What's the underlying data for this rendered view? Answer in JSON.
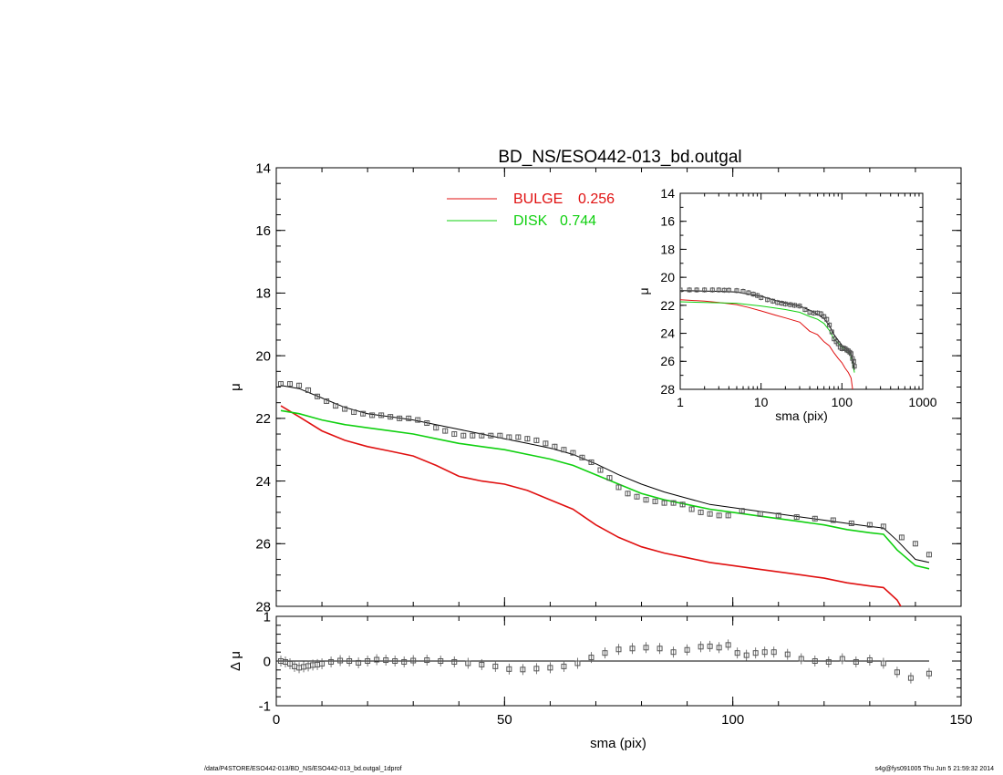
{
  "footer": {
    "path": "/data/P4STORE/ESO442-013/BD_NS/ESO442-013_bd.outgal_1dprof",
    "stamp": "s4g@fys091005  Thu Jun  5 21:59:32 2014"
  },
  "colors": {
    "bulge": "#e01010",
    "disk": "#10d010",
    "total": "#000000",
    "points": "#555555"
  },
  "chart_data": [
    {
      "type": "line",
      "title": "BD_NS/ESO442-013_bd.outgal",
      "xlabel": "",
      "ylabel": "μ",
      "xlim": [
        0,
        150
      ],
      "ylim": [
        28,
        14
      ],
      "y_reversed": true,
      "xticks": [
        0,
        50,
        100,
        150
      ],
      "yticks": [
        14,
        16,
        18,
        20,
        22,
        24,
        26,
        28
      ],
      "legend": [
        {
          "name": "BULGE",
          "value": "0.256",
          "color": "#e01010"
        },
        {
          "name": "DISK",
          "value": "0.744",
          "color": "#10d010"
        }
      ],
      "legend_position": "top-center",
      "series": [
        {
          "name": "BULGE",
          "color": "#e01010",
          "x": [
            1,
            5,
            10,
            15,
            20,
            25,
            30,
            35,
            40,
            45,
            50,
            55,
            60,
            65,
            70,
            75,
            80,
            85,
            90,
            95,
            100,
            105,
            110,
            115,
            120,
            125,
            130,
            133,
            136,
            138
          ],
          "y": [
            21.6,
            21.95,
            22.4,
            22.7,
            22.9,
            23.05,
            23.2,
            23.5,
            23.85,
            24.0,
            24.1,
            24.3,
            24.6,
            24.9,
            25.4,
            25.8,
            26.1,
            26.3,
            26.45,
            26.6,
            26.7,
            26.8,
            26.9,
            27.0,
            27.1,
            27.25,
            27.35,
            27.4,
            27.8,
            28.3
          ]
        },
        {
          "name": "DISK",
          "color": "#10d010",
          "x": [
            1,
            5,
            10,
            15,
            20,
            25,
            30,
            35,
            40,
            45,
            50,
            55,
            60,
            65,
            70,
            75,
            80,
            85,
            90,
            95,
            100,
            105,
            110,
            115,
            120,
            125,
            130,
            133,
            136,
            140,
            143
          ],
          "y": [
            21.75,
            21.85,
            22.05,
            22.2,
            22.3,
            22.4,
            22.5,
            22.65,
            22.8,
            22.9,
            23.0,
            23.15,
            23.3,
            23.5,
            23.8,
            24.1,
            24.4,
            24.6,
            24.75,
            24.9,
            25.0,
            25.1,
            25.2,
            25.3,
            25.4,
            25.55,
            25.65,
            25.7,
            26.2,
            26.7,
            26.8
          ]
        },
        {
          "name": "total",
          "color": "#000000",
          "x": [
            1,
            5,
            10,
            15,
            20,
            25,
            30,
            35,
            40,
            45,
            50,
            55,
            60,
            65,
            70,
            75,
            80,
            85,
            90,
            95,
            100,
            105,
            110,
            115,
            120,
            125,
            130,
            133,
            136,
            140,
            143
          ],
          "y": [
            20.95,
            21.05,
            21.35,
            21.65,
            21.85,
            21.95,
            22.05,
            22.2,
            22.35,
            22.5,
            22.65,
            22.8,
            22.95,
            23.15,
            23.45,
            23.8,
            24.1,
            24.35,
            24.55,
            24.75,
            24.85,
            24.95,
            25.05,
            25.15,
            25.25,
            25.35,
            25.45,
            25.5,
            25.9,
            26.5,
            26.6
          ]
        },
        {
          "name": "data",
          "type": "scatter",
          "color": "#555555",
          "x": [
            1,
            3,
            5,
            7,
            9,
            11,
            13,
            15,
            17,
            19,
            21,
            23,
            25,
            27,
            29,
            31,
            33,
            35,
            37,
            39,
            41,
            43,
            45,
            47,
            49,
            51,
            53,
            55,
            57,
            59,
            61,
            63,
            65,
            67,
            69,
            71,
            73,
            75,
            77,
            79,
            81,
            83,
            85,
            87,
            89,
            91,
            93,
            95,
            97,
            99,
            102,
            106,
            110,
            114,
            118,
            122,
            126,
            130,
            133,
            137,
            140,
            143
          ],
          "y": [
            20.9,
            20.9,
            20.95,
            21.1,
            21.3,
            21.45,
            21.6,
            21.7,
            21.8,
            21.85,
            21.9,
            21.9,
            21.95,
            22.0,
            22.0,
            22.05,
            22.15,
            22.3,
            22.4,
            22.5,
            22.55,
            22.55,
            22.55,
            22.55,
            22.55,
            22.6,
            22.6,
            22.65,
            22.7,
            22.8,
            22.9,
            23.0,
            23.1,
            23.25,
            23.4,
            23.65,
            23.9,
            24.2,
            24.4,
            24.5,
            24.6,
            24.65,
            24.7,
            24.7,
            24.75,
            24.9,
            25.0,
            25.05,
            25.1,
            25.1,
            24.95,
            25.05,
            25.1,
            25.15,
            25.2,
            25.25,
            25.35,
            25.4,
            25.45,
            25.8,
            26.0,
            26.35
          ]
        }
      ]
    },
    {
      "type": "line",
      "title": "",
      "xlabel": "",
      "ylabel": "Δ μ",
      "xlim": [
        0,
        150
      ],
      "ylim": [
        -1,
        1
      ],
      "xticks": [
        0,
        50,
        100,
        150
      ],
      "yticks": [
        -1,
        0,
        1
      ],
      "series": [
        {
          "name": "zero",
          "color": "#000000",
          "x": [
            0,
            143
          ],
          "y": [
            0,
            0
          ]
        },
        {
          "name": "residual",
          "type": "scatter",
          "color": "#555555",
          "x": [
            1,
            2,
            3,
            4,
            5,
            6,
            7,
            8,
            9,
            10,
            12,
            14,
            16,
            18,
            20,
            22,
            24,
            26,
            28,
            30,
            33,
            36,
            39,
            42,
            45,
            48,
            51,
            54,
            57,
            60,
            63,
            66,
            69,
            72,
            75,
            78,
            81,
            84,
            87,
            90,
            93,
            95,
            97,
            99,
            101,
            103,
            105,
            107,
            109,
            112,
            115,
            118,
            121,
            124,
            127,
            130,
            133,
            136,
            139,
            143
          ],
          "y": [
            0.0,
            -0.02,
            -0.06,
            -0.12,
            -0.15,
            -0.13,
            -0.11,
            -0.09,
            -0.08,
            -0.06,
            -0.02,
            0.01,
            0.0,
            -0.04,
            0.0,
            0.03,
            0.02,
            0.0,
            -0.02,
            0.01,
            0.02,
            0.0,
            -0.02,
            -0.05,
            -0.08,
            -0.12,
            -0.18,
            -0.19,
            -0.17,
            -0.15,
            -0.12,
            -0.05,
            0.08,
            0.18,
            0.26,
            0.28,
            0.3,
            0.28,
            0.2,
            0.25,
            0.32,
            0.33,
            0.3,
            0.36,
            0.18,
            0.13,
            0.18,
            0.2,
            0.2,
            0.15,
            0.05,
            0.0,
            -0.02,
            0.05,
            -0.02,
            0.02,
            -0.05,
            -0.25,
            -0.38,
            -0.28
          ]
        }
      ]
    },
    {
      "type": "line",
      "title": "",
      "xlabel": "sma (pix)",
      "ylabel": "μ",
      "x_scale": "log",
      "xlim": [
        1,
        1000
      ],
      "ylim": [
        28,
        14
      ],
      "y_reversed": true,
      "xticks": [
        1,
        10,
        100,
        1000
      ],
      "yticks": [
        14,
        16,
        18,
        20,
        22,
        24,
        26,
        28
      ],
      "series": [
        {
          "name": "BULGE",
          "color": "#e01010",
          "x": [
            1,
            2,
            3,
            5,
            7,
            10,
            15,
            20,
            30,
            40,
            50,
            60,
            70,
            80,
            90,
            100,
            110,
            120,
            130,
            138
          ],
          "y": [
            21.6,
            21.7,
            21.8,
            21.95,
            22.15,
            22.4,
            22.7,
            22.9,
            23.2,
            23.85,
            24.1,
            24.6,
            24.9,
            25.4,
            25.8,
            26.1,
            26.5,
            26.8,
            27.2,
            28.3
          ]
        },
        {
          "name": "DISK",
          "color": "#10d010",
          "x": [
            1,
            2,
            3,
            5,
            7,
            10,
            15,
            20,
            30,
            40,
            50,
            60,
            70,
            80,
            90,
            100,
            110,
            120,
            130,
            143
          ],
          "y": [
            21.75,
            21.8,
            21.82,
            21.85,
            21.95,
            22.05,
            22.2,
            22.3,
            22.5,
            22.8,
            23.0,
            23.3,
            23.8,
            24.4,
            24.7,
            25.0,
            25.2,
            25.4,
            25.6,
            26.8
          ]
        },
        {
          "name": "total",
          "color": "#000000",
          "x": [
            1,
            2,
            3,
            5,
            7,
            10,
            15,
            20,
            30,
            40,
            50,
            60,
            70,
            80,
            90,
            100,
            110,
            120,
            130,
            143
          ],
          "y": [
            20.95,
            20.98,
            21.0,
            21.05,
            21.2,
            21.35,
            21.65,
            21.85,
            22.05,
            22.35,
            22.65,
            22.95,
            23.45,
            24.1,
            24.5,
            24.85,
            25.05,
            25.25,
            25.45,
            26.6
          ]
        },
        {
          "name": "data",
          "type": "scatter",
          "color": "#555555",
          "x": [
            1,
            1.3,
            1.6,
            2,
            2.5,
            3,
            3.5,
            4,
            5,
            6,
            7,
            8,
            9,
            10,
            12,
            14,
            16,
            18,
            20,
            23,
            26,
            30,
            35,
            40,
            45,
            50,
            55,
            60,
            65,
            70,
            75,
            80,
            85,
            90,
            95,
            100,
            105,
            110,
            115,
            120,
            125,
            130,
            135,
            140,
            143
          ],
          "y": [
            20.9,
            20.9,
            20.9,
            20.9,
            20.9,
            20.9,
            20.92,
            20.92,
            20.95,
            21.0,
            21.1,
            21.2,
            21.3,
            21.45,
            21.6,
            21.7,
            21.8,
            21.85,
            21.9,
            21.95,
            22.0,
            22.05,
            22.3,
            22.5,
            22.55,
            22.55,
            22.6,
            22.8,
            23.0,
            23.4,
            23.9,
            24.4,
            24.6,
            24.75,
            25.0,
            25.1,
            25.05,
            25.1,
            25.2,
            25.25,
            25.35,
            25.45,
            25.8,
            26.0,
            26.35
          ]
        }
      ]
    }
  ]
}
